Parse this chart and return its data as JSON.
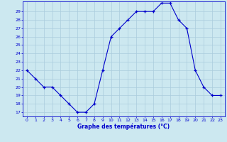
{
  "hours": [
    0,
    1,
    2,
    3,
    4,
    5,
    6,
    7,
    8,
    9,
    10,
    11,
    12,
    13,
    14,
    15,
    16,
    17,
    18,
    19,
    20,
    21,
    22,
    23
  ],
  "temps": [
    22,
    21,
    20,
    20,
    19,
    18,
    17,
    17,
    18,
    22,
    26,
    27,
    28,
    29,
    29,
    29,
    30,
    30,
    28,
    27,
    22,
    20,
    19,
    19
  ],
  "bg_color": "#cce8f0",
  "grid_color": "#aaccdd",
  "line_color": "#0000cc",
  "marker_color": "#0000cc",
  "xlabel": "Graphe des températures (°C)",
  "xlabel_color": "#0000cc",
  "tick_color": "#0000cc",
  "ylim": [
    16.5,
    30.2
  ],
  "yticks": [
    17,
    18,
    19,
    20,
    21,
    22,
    23,
    24,
    25,
    26,
    27,
    28,
    29
  ],
  "xticks": [
    0,
    1,
    2,
    3,
    4,
    5,
    6,
    7,
    8,
    9,
    10,
    11,
    12,
    13,
    14,
    15,
    16,
    17,
    18,
    19,
    20,
    21,
    22,
    23
  ],
  "axis_spine_color": "#0000cc"
}
